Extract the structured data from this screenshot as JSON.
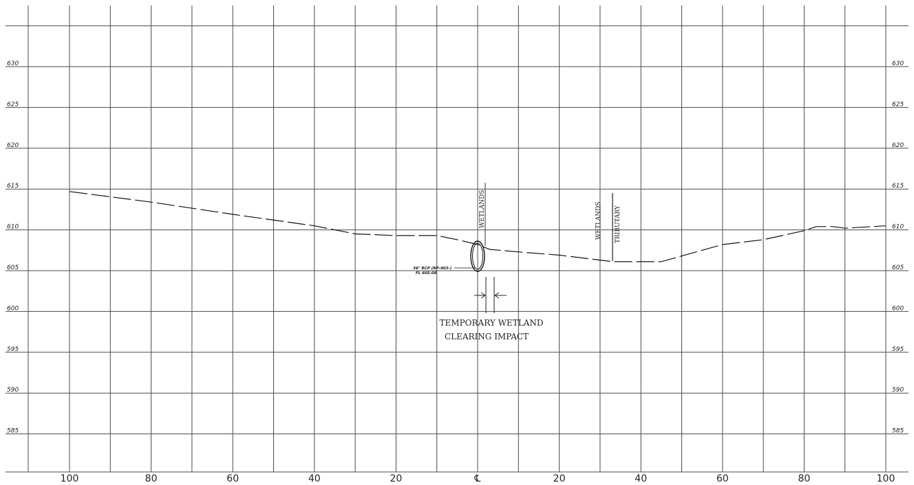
{
  "chart_data": {
    "type": "line",
    "title": "",
    "xlabel": "",
    "ylabel": "",
    "x_tick_labels": [
      "100",
      "80",
      "60",
      "40",
      "20",
      "℄",
      "20",
      "40",
      "60",
      "80",
      "100"
    ],
    "y_ticks": [
      630,
      625,
      620,
      615,
      610,
      605,
      600,
      595,
      590,
      585
    ],
    "xlim": [
      -100,
      100
    ],
    "ylim": [
      580,
      635
    ],
    "grid": true,
    "series": [
      {
        "style": "dashed",
        "x": [
          -100,
          -80,
          -60,
          -40,
          -30,
          -20,
          -10,
          -5,
          0,
          3,
          10,
          20,
          30,
          33,
          45,
          50,
          60,
          70,
          80,
          83,
          87,
          90,
          100
        ],
        "y": [
          614.7,
          613.4,
          611.9,
          610.5,
          609.5,
          609.3,
          609.3,
          608.8,
          608.2,
          607.6,
          607.3,
          606.9,
          606.3,
          606.1,
          606.1,
          606.8,
          608.2,
          608.8,
          609.9,
          610.4,
          610.4,
          610.2,
          610.5
        ]
      }
    ],
    "annotations": {
      "wetlands_left": "WETLANDS",
      "wetlands_right": "WETLANDS",
      "tributary": "TRIBUTARY",
      "pipe_line1": "36\" RCP (NP-903-)",
      "pipe_line2": "FL 605.08",
      "impact_line1": "TEMPORARY WETLAND",
      "impact_line2": "CLEARING IMPACT"
    }
  }
}
